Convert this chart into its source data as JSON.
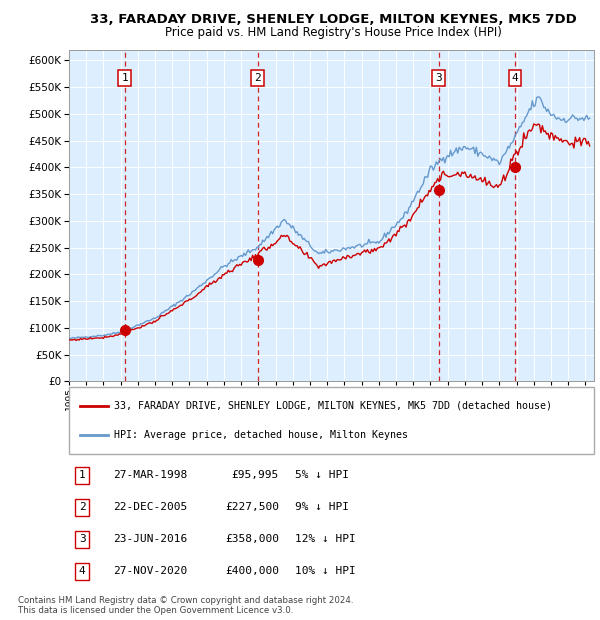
{
  "title1": "33, FARADAY DRIVE, SHENLEY LODGE, MILTON KEYNES, MK5 7DD",
  "title2": "Price paid vs. HM Land Registry's House Price Index (HPI)",
  "legend_line1": "33, FARADAY DRIVE, SHENLEY LODGE, MILTON KEYNES, MK5 7DD (detached house)",
  "legend_line2": "HPI: Average price, detached house, Milton Keynes",
  "transactions": [
    {
      "num": 1,
      "date_str": "27-MAR-1998",
      "year": 1998.23,
      "price": 95995,
      "pct": "5%",
      "dir": "↓"
    },
    {
      "num": 2,
      "date_str": "22-DEC-2005",
      "year": 2005.97,
      "price": 227500,
      "pct": "9%",
      "dir": "↓"
    },
    {
      "num": 3,
      "date_str": "23-JUN-2016",
      "year": 2016.48,
      "price": 358000,
      "pct": "12%",
      "dir": "↓"
    },
    {
      "num": 4,
      "date_str": "27-NOV-2020",
      "year": 2020.91,
      "price": 400000,
      "pct": "10%",
      "dir": "↓"
    }
  ],
  "footer1": "Contains HM Land Registry data © Crown copyright and database right 2024.",
  "footer2": "This data is licensed under the Open Government Licence v3.0.",
  "hpi_color": "#6699cc",
  "price_color": "#cc0000",
  "marker_color": "#cc0000",
  "dashed_color": "#cc0000",
  "bg_color": "#ddeeff",
  "grid_color": "#ffffff",
  "ylim": [
    0,
    620000
  ],
  "yticks": [
    0,
    50000,
    100000,
    150000,
    200000,
    250000,
    300000,
    350000,
    400000,
    450000,
    500000,
    550000,
    600000
  ],
  "xmin": 1995,
  "xmax": 2025.5,
  "hpi_keypoints": [
    [
      1995.0,
      80000
    ],
    [
      1997.0,
      86000
    ],
    [
      1998.0,
      92000
    ],
    [
      2000.0,
      118000
    ],
    [
      2002.0,
      162000
    ],
    [
      2004.0,
      215000
    ],
    [
      2006.0,
      252000
    ],
    [
      2007.5,
      302000
    ],
    [
      2009.5,
      238000
    ],
    [
      2011.0,
      248000
    ],
    [
      2013.0,
      260000
    ],
    [
      2014.5,
      310000
    ],
    [
      2016.0,
      395000
    ],
    [
      2016.8,
      420000
    ],
    [
      2018.0,
      438000
    ],
    [
      2019.0,
      425000
    ],
    [
      2020.0,
      408000
    ],
    [
      2021.0,
      460000
    ],
    [
      2021.8,
      510000
    ],
    [
      2022.3,
      530000
    ],
    [
      2022.8,
      505000
    ],
    [
      2023.5,
      490000
    ],
    [
      2024.5,
      492000
    ],
    [
      2025.3,
      490000
    ]
  ],
  "price_keypoints": [
    [
      1995.0,
      77000
    ],
    [
      1997.0,
      82000
    ],
    [
      1998.0,
      88000
    ],
    [
      2000.0,
      112000
    ],
    [
      2002.0,
      152000
    ],
    [
      2004.0,
      200000
    ],
    [
      2006.0,
      238000
    ],
    [
      2007.5,
      272000
    ],
    [
      2009.5,
      215000
    ],
    [
      2011.0,
      232000
    ],
    [
      2013.0,
      248000
    ],
    [
      2014.5,
      290000
    ],
    [
      2016.0,
      362000
    ],
    [
      2016.8,
      385000
    ],
    [
      2018.0,
      390000
    ],
    [
      2019.0,
      375000
    ],
    [
      2020.0,
      360000
    ],
    [
      2021.0,
      430000
    ],
    [
      2021.8,
      472000
    ],
    [
      2022.3,
      480000
    ],
    [
      2022.8,
      462000
    ],
    [
      2023.5,
      455000
    ],
    [
      2024.0,
      447000
    ],
    [
      2025.3,
      445000
    ]
  ]
}
